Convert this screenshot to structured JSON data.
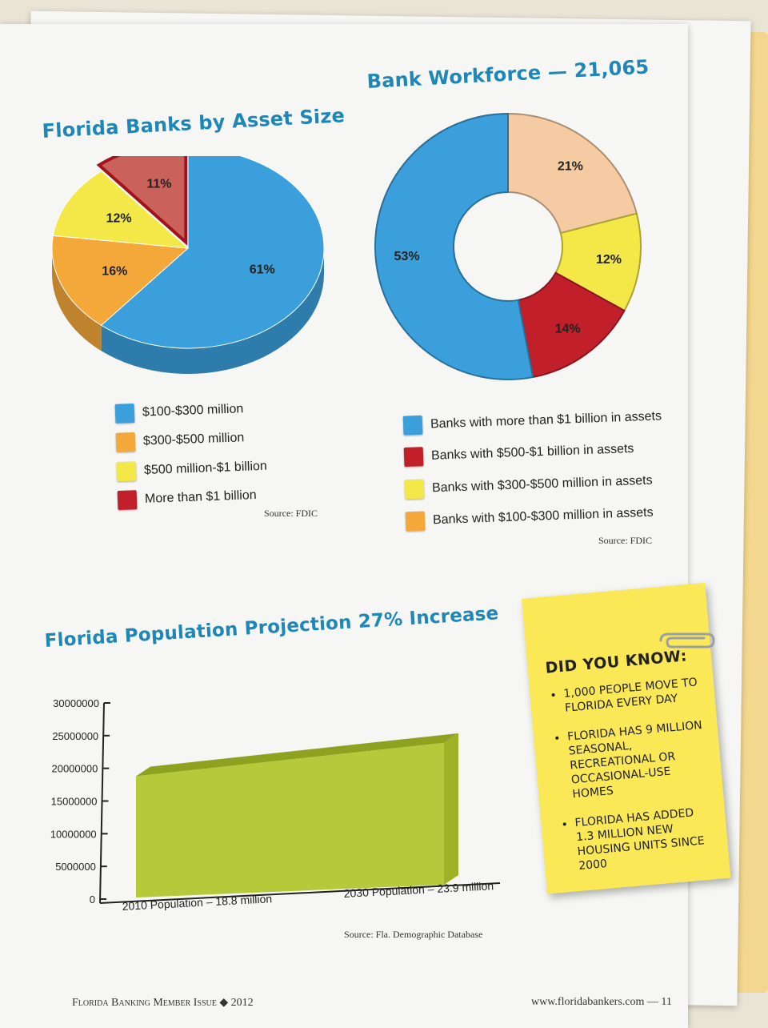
{
  "colors": {
    "blue": "#3b9fdc",
    "orange": "#f5a83a",
    "yellow": "#f3e847",
    "red": "#c11f2a",
    "peach": "#f4cba2",
    "title_blue": "#1e87b8",
    "note_yellow": "#fae857",
    "area_green": "#b5c93a"
  },
  "asset_chart": {
    "title": "Florida Banks by Asset Size",
    "source": "Source: FDIC",
    "legend": [
      "$100-$300 million",
      "$300-$500 million",
      "$500 million-$1 billion",
      "More than $1 billion"
    ]
  },
  "workforce_chart": {
    "title": "Bank Workforce — 21,065",
    "source": "Source: FDIC",
    "legend": [
      "Banks with more than $1 billion in assets",
      "Banks with $500-$1 billion in assets",
      "Banks with $300-$500 million in assets",
      "Banks with $100-$300 million in assets"
    ]
  },
  "population_chart": {
    "title": "Florida Population Projection 27% Increase",
    "source": "Source: Fla. Demographic Database"
  },
  "did_you_know": {
    "heading": "DID YOU KNOW:",
    "items": [
      "1,000 PEOPLE MOVE TO FLORIDA EVERY DAY",
      "FLORIDA HAS 9 MILLION SEASONAL, RECREATIONAL OR OCCASIONAL-USE HOMES",
      "FLORIDA HAS ADDED 1.3 MILLION NEW HOUSING UNITS SINCE 2000"
    ]
  },
  "footer": {
    "left": "Florida Banking Member Issue ◆ 2012",
    "right": "www.floridabankers.com — 11"
  },
  "chart_data": [
    {
      "type": "pie",
      "title": "Florida Banks by Asset Size",
      "categories": [
        "$100-$300 million",
        "$300-$500 million",
        "$500 million-$1 billion",
        "More than $1 billion"
      ],
      "values": [
        61,
        16,
        12,
        11
      ],
      "labels": [
        "61%",
        "16%",
        "12%",
        "11%"
      ],
      "colors": [
        "#3b9fdc",
        "#f5a83a",
        "#f3e847",
        "#c9625a"
      ],
      "legend": "below"
    },
    {
      "type": "pie",
      "title": "Bank Workforce — 21,065",
      "categories": [
        "Banks with more than $1 billion in assets",
        "Banks with $100-$300 million in assets",
        "Banks with $300-$500 million in assets",
        "Banks with $500-$1 billion in assets"
      ],
      "values": [
        53,
        21,
        12,
        14
      ],
      "labels": [
        "53%",
        "21%",
        "12%",
        "14%"
      ],
      "colors": [
        "#3b9fdc",
        "#f4cba2",
        "#f3e847",
        "#c11f2a"
      ],
      "legend": "below"
    },
    {
      "type": "area",
      "title": "Florida Population Projection 27% Increase",
      "categories": [
        "2010 Population – 18.8 million",
        "2030 Population – 23.9 million"
      ],
      "values": [
        18800000,
        23900000
      ],
      "ylim": [
        0,
        30000000
      ],
      "yticks": [
        "0",
        "5000000",
        "10000000",
        "15000000",
        "20000000",
        "25000000",
        "30000000"
      ],
      "grid": false
    }
  ]
}
